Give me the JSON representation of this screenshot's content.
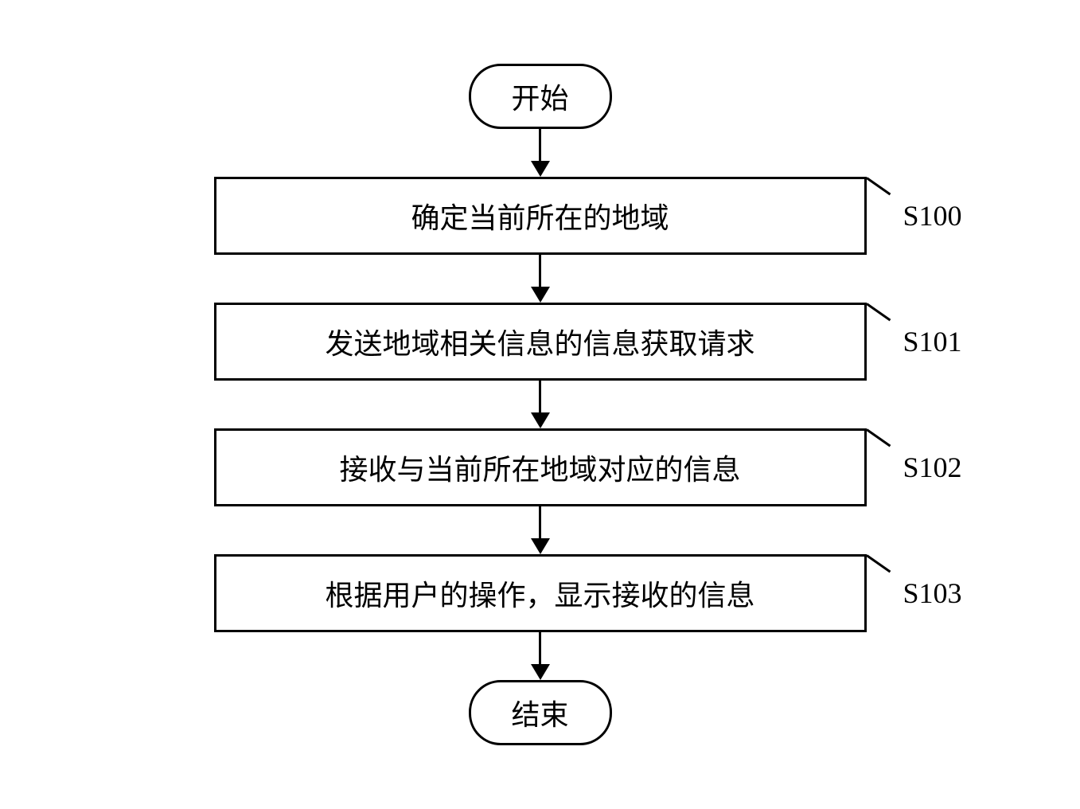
{
  "flowchart": {
    "type": "flowchart",
    "background_color": "#ffffff",
    "border_color": "#000000",
    "border_width": 3,
    "font_family": "SimSun",
    "font_size": 36,
    "text_color": "#000000",
    "terminal_border_radius": 40,
    "process_width": 820,
    "arrow_color": "#000000",
    "nodes": {
      "start": {
        "type": "terminal",
        "label": "开始"
      },
      "s100": {
        "type": "process",
        "label": "确定当前所在的地域",
        "step_id": "S100"
      },
      "s101": {
        "type": "process",
        "label": "发送地域相关信息的信息获取请求",
        "step_id": "S101"
      },
      "s102": {
        "type": "process",
        "label": "接收与当前所在地域对应的信息",
        "step_id": "S102"
      },
      "s103": {
        "type": "process",
        "label": "根据用户的操作，显示接收的信息",
        "step_id": "S103"
      },
      "end": {
        "type": "terminal",
        "label": "结束"
      }
    },
    "edges": [
      {
        "from": "start",
        "to": "s100"
      },
      {
        "from": "s100",
        "to": "s101"
      },
      {
        "from": "s101",
        "to": "s102"
      },
      {
        "from": "s102",
        "to": "s103"
      },
      {
        "from": "s103",
        "to": "end"
      }
    ]
  }
}
